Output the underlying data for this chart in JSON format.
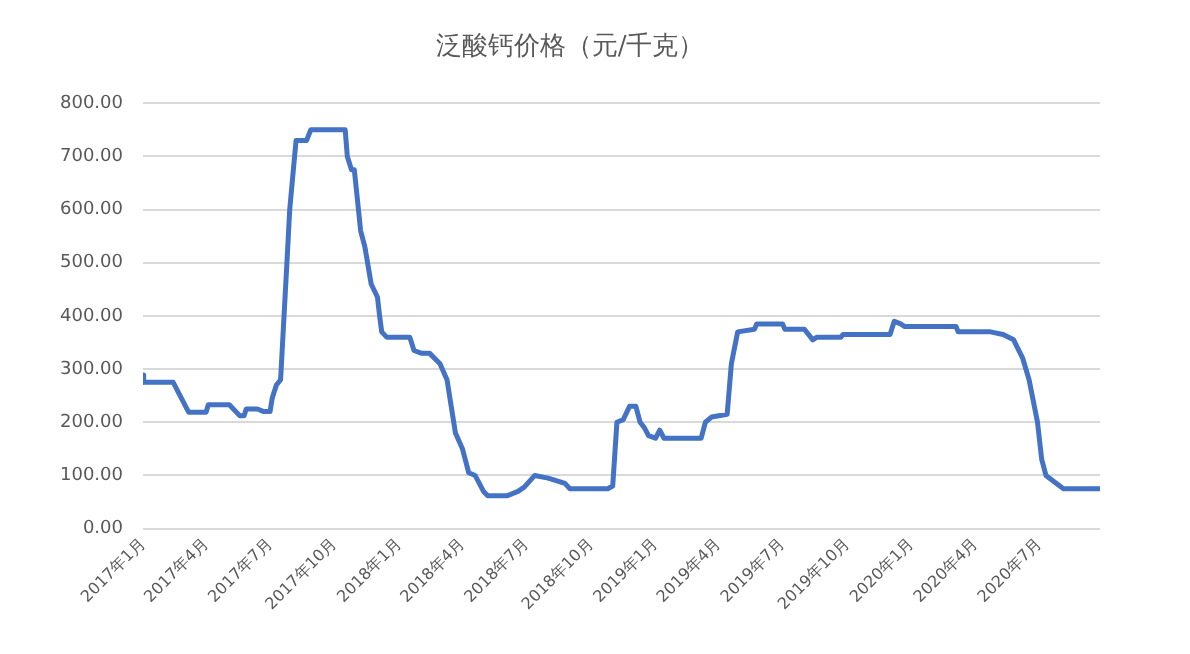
{
  "chart_data": {
    "type": "line",
    "title": "泛酸钙价格（元/千克）",
    "x": [
      "2017-01-01",
      "2017-01-02",
      "2017-02-13",
      "2017-03-07",
      "2017-04-01",
      "2017-04-04",
      "2017-05-04",
      "2017-05-19",
      "2017-05-25",
      "2017-05-28",
      "2017-06-13",
      "2017-06-22",
      "2017-07-01",
      "2017-07-04",
      "2017-07-10",
      "2017-07-16",
      "2017-07-25",
      "2017-07-29",
      "2017-08-07",
      "2017-08-22",
      "2017-08-28",
      "2017-10-16",
      "2017-10-19",
      "2017-10-25",
      "2017-10-29",
      "2017-11-07",
      "2017-11-13",
      "2017-11-22",
      "2017-12-01",
      "2017-12-04",
      "2017-12-07",
      "2017-12-14",
      "2018-01-16",
      "2018-01-22",
      "2018-02-01",
      "2018-02-13",
      "2018-02-28",
      "2018-03-10",
      "2018-03-16",
      "2018-03-22",
      "2018-04-01",
      "2018-04-10",
      "2018-04-19",
      "2018-05-01",
      "2018-05-07",
      "2018-06-04",
      "2018-06-19",
      "2018-06-28",
      "2018-07-13",
      "2018-08-01",
      "2018-08-25",
      "2018-09-01",
      "2018-10-25",
      "2018-11-01",
      "2018-11-07",
      "2018-11-16",
      "2018-11-25",
      "2018-12-04",
      "2018-12-10",
      "2018-12-16",
      "2018-12-22",
      "2019-01-01",
      "2019-01-07",
      "2019-01-13",
      "2019-03-07",
      "2019-03-13",
      "2019-03-22",
      "2019-04-13",
      "2019-04-19",
      "2019-04-28",
      "2019-05-22",
      "2019-05-25",
      "2019-07-01",
      "2019-07-04",
      "2019-08-01",
      "2019-08-13",
      "2019-08-19",
      "2019-09-22",
      "2019-09-25",
      "2019-12-01",
      "2019-12-07",
      "2019-12-16",
      "2019-12-22",
      "2020-03-04",
      "2020-03-07",
      "2020-04-22",
      "2020-05-10",
      "2020-05-25",
      "2020-06-07",
      "2020-06-16",
      "2020-06-28",
      "2020-07-04",
      "2020-07-10",
      "2020-07-25",
      "2020-08-04",
      "2020-09-25"
    ],
    "series": [
      {
        "color": "#4472c4",
        "values": [
          289,
          275,
          275,
          219,
          219,
          233,
          233,
          212,
          212,
          225,
          225,
          220,
          220,
          245,
          270,
          280,
          500,
          600,
          730,
          730,
          750,
          750,
          700,
          675,
          675,
          560,
          530,
          460,
          435,
          400,
          370,
          360,
          360,
          335,
          330,
          330,
          310,
          280,
          230,
          180,
          150,
          105,
          100,
          70,
          62,
          62,
          70,
          78,
          100,
          95,
          85,
          75,
          75,
          80,
          200,
          205,
          230,
          230,
          200,
          190,
          175,
          170,
          185,
          170,
          170,
          200,
          210,
          215,
          310,
          370,
          375,
          385,
          385,
          375,
          375,
          355,
          360,
          360,
          365,
          365,
          390,
          385,
          380,
          380,
          370,
          370,
          365,
          355,
          320,
          280,
          200,
          130,
          100,
          85,
          75,
          75
        ]
      }
    ],
    "xlim": [
      "2017-01-01",
      "2020-09-25"
    ],
    "xticks": [
      {
        "value": "2017-01-01",
        "label": "2017年1月"
      },
      {
        "value": "2017-04-01",
        "label": "2017年4月"
      },
      {
        "value": "2017-07-01",
        "label": "2017年7月"
      },
      {
        "value": "2017-10-01",
        "label": "2017年10月"
      },
      {
        "value": "2018-01-01",
        "label": "2018年1月"
      },
      {
        "value": "2018-04-01",
        "label": "2018年4月"
      },
      {
        "value": "2018-07-01",
        "label": "2018年7月"
      },
      {
        "value": "2018-10-01",
        "label": "2018年10月"
      },
      {
        "value": "2019-01-01",
        "label": "2019年1月"
      },
      {
        "value": "2019-04-01",
        "label": "2019年4月"
      },
      {
        "value": "2019-07-01",
        "label": "2019年7月"
      },
      {
        "value": "2019-10-01",
        "label": "2019年10月"
      },
      {
        "value": "2020-01-01",
        "label": "2020年1月"
      },
      {
        "value": "2020-04-01",
        "label": "2020年4月"
      },
      {
        "value": "2020-07-01",
        "label": "2020年7月"
      }
    ],
    "ylim": [
      0,
      800
    ],
    "yticks": [
      {
        "value": 0,
        "label": "0.00"
      },
      {
        "value": 100,
        "label": "100.00"
      },
      {
        "value": 200,
        "label": "200.00"
      },
      {
        "value": 300,
        "label": "300.00"
      },
      {
        "value": 400,
        "label": "400.00"
      },
      {
        "value": 500,
        "label": "500.00"
      },
      {
        "value": 600,
        "label": "600.00"
      },
      {
        "value": 700,
        "label": "700.00"
      },
      {
        "value": 800,
        "label": "800.00"
      }
    ],
    "grid": "y",
    "legend": false,
    "marker": "none",
    "line_style": "solid"
  }
}
